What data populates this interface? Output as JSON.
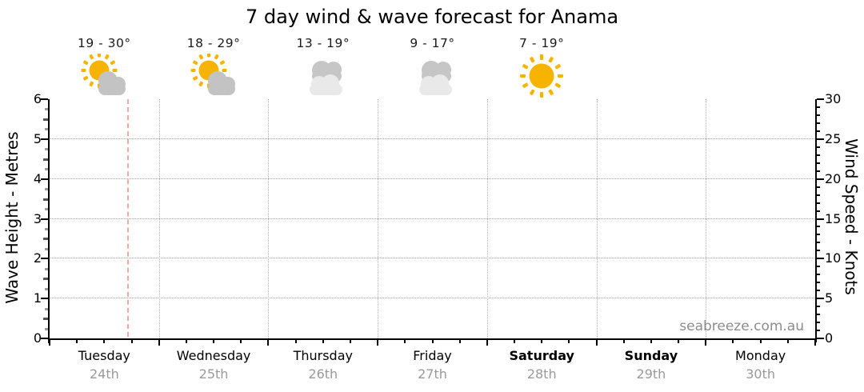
{
  "title": "7 day wind & wave forecast for Anama",
  "watermark": "seabreeze.com.au",
  "left_axis": {
    "label": "Wave Height - Metres",
    "ticks": [
      0,
      1,
      2,
      3,
      4,
      5,
      6
    ]
  },
  "right_axis": {
    "label": "Wind Speed - Knots",
    "ticks": [
      0,
      5,
      10,
      15,
      20,
      25,
      30
    ]
  },
  "days": [
    {
      "name": "Tuesday",
      "date": "24th",
      "temp": "19 - 30°",
      "icon": "partly-cloudy",
      "bold": false
    },
    {
      "name": "Wednesday",
      "date": "25th",
      "temp": "18 - 29°",
      "icon": "partly-cloudy",
      "bold": false
    },
    {
      "name": "Thursday",
      "date": "26th",
      "temp": "13 - 19°",
      "icon": "cloudy",
      "bold": false
    },
    {
      "name": "Friday",
      "date": "27th",
      "temp": "9 - 17°",
      "icon": "cloudy",
      "bold": false
    },
    {
      "name": "Saturday",
      "date": "28th",
      "temp": "7 - 19°",
      "icon": "sunny",
      "bold": true
    },
    {
      "name": "Sunday",
      "date": "29th",
      "temp": "",
      "icon": "none",
      "bold": true
    },
    {
      "name": "Monday",
      "date": "30th",
      "temp": "",
      "icon": "none",
      "bold": false
    }
  ],
  "colors": {
    "sun": "#f6b400",
    "cloud": "#c3c3c3",
    "cloud_dark": "#c6c6c6",
    "cloud_light": "#e9e9e9",
    "grid": "#9f9f9f",
    "now_line": "#f5a8a2",
    "date_text": "#999999",
    "watermark_text": "#8c8c8c"
  },
  "chart_data": {
    "type": "line",
    "title": "7 day wind & wave forecast for Anama",
    "x_categories": [
      "Tuesday 24th",
      "Wednesday 25th",
      "Thursday 26th",
      "Friday 27th",
      "Saturday 28th",
      "Sunday 29th",
      "Monday 30th"
    ],
    "series": [],
    "plot_area_empty": true,
    "y_left_axis": {
      "label": "Wave Height - Metres",
      "min": 0,
      "max": 6,
      "major_ticks": [
        0,
        1,
        2,
        3,
        4,
        5,
        6
      ],
      "minor_tick_step": 0.25,
      "gridlines": [
        1,
        2,
        3,
        4,
        5
      ]
    },
    "y_right_axis": {
      "label": "Wind Speed - Knots",
      "min": 0,
      "max": 30,
      "major_ticks": [
        0,
        5,
        10,
        15,
        20,
        25,
        30
      ],
      "minor_tick_step": 1
    },
    "x_axis": {
      "day_boundary_gridlines": true,
      "minor_ticks_per_day": 3
    },
    "now_marker": {
      "day_index": 0,
      "day_fraction": 0.72
    },
    "daily_temps_c": [
      {
        "day": "Tuesday",
        "low": 19,
        "high": 30
      },
      {
        "day": "Wednesday",
        "low": 18,
        "high": 29
      },
      {
        "day": "Thursday",
        "low": 13,
        "high": 19
      },
      {
        "day": "Friday",
        "low": 9,
        "high": 17
      },
      {
        "day": "Saturday",
        "low": 7,
        "high": 19
      }
    ],
    "daily_conditions": [
      "partly-cloudy",
      "partly-cloudy",
      "cloudy",
      "cloudy",
      "sunny",
      null,
      null
    ],
    "legend": false,
    "grid": true
  }
}
